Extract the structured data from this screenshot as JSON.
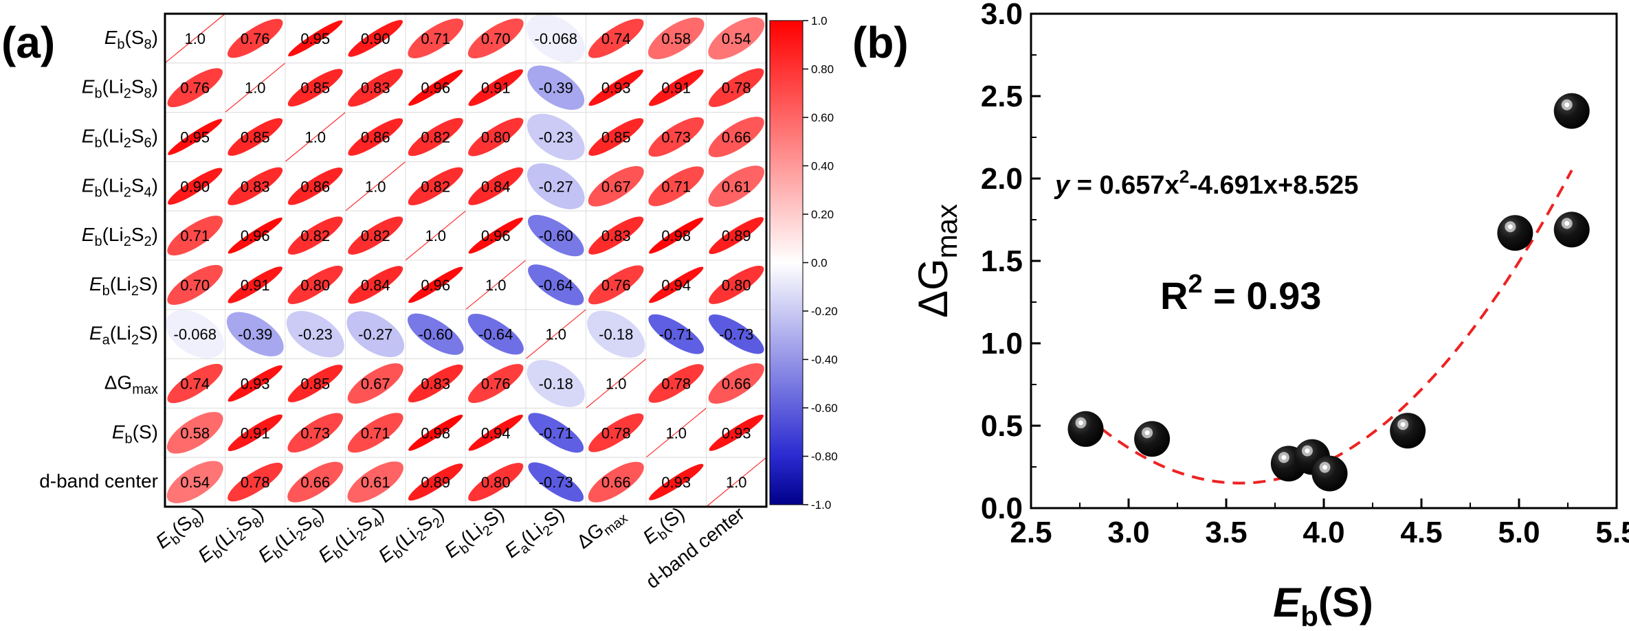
{
  "panel_a": {
    "letter": "(a)"
  },
  "panel_b": {
    "letter": "(b)"
  },
  "chart_data": [
    {
      "type": "heatmap",
      "variables": [
        {
          "main": "E",
          "sub": "b",
          "paren": "(S",
          "psub": "8",
          "tail": ")"
        },
        {
          "main": "E",
          "sub": "b",
          "paren": "(Li",
          "psub": "2",
          "mid": "S",
          "psub2": "8",
          "tail": ")"
        },
        {
          "main": "E",
          "sub": "b",
          "paren": "(Li",
          "psub": "2",
          "mid": "S",
          "psub2": "6",
          "tail": ")"
        },
        {
          "main": "E",
          "sub": "b",
          "paren": "(Li",
          "psub": "2",
          "mid": "S",
          "psub2": "4",
          "tail": ")"
        },
        {
          "main": "E",
          "sub": "b",
          "paren": "(Li",
          "psub": "2",
          "mid": "S",
          "psub2": "2",
          "tail": ")"
        },
        {
          "main": "E",
          "sub": "b",
          "paren": "(Li",
          "psub": "2",
          "mid": "S",
          "tail": ")"
        },
        {
          "main": "E",
          "sub": "a",
          "paren": "(Li",
          "psub": "2",
          "mid": "S",
          "tail": ")"
        },
        {
          "main": "ΔG",
          "sub": "max"
        },
        {
          "main": "E",
          "sub": "b",
          "paren": "(S)"
        },
        {
          "plain": "d-band center"
        }
      ],
      "values": [
        [
          1.0,
          0.76,
          0.95,
          0.9,
          0.71,
          0.7,
          -0.068,
          0.74,
          0.58,
          0.54
        ],
        [
          0.76,
          1.0,
          0.85,
          0.83,
          0.96,
          0.91,
          -0.39,
          0.93,
          0.91,
          0.78
        ],
        [
          0.95,
          0.85,
          1.0,
          0.86,
          0.82,
          0.8,
          -0.23,
          0.85,
          0.73,
          0.66
        ],
        [
          0.9,
          0.83,
          0.86,
          1.0,
          0.82,
          0.84,
          -0.27,
          0.67,
          0.71,
          0.61
        ],
        [
          0.71,
          0.96,
          0.82,
          0.82,
          1.0,
          0.96,
          -0.6,
          0.83,
          0.98,
          0.89
        ],
        [
          0.7,
          0.91,
          0.8,
          0.84,
          0.96,
          1.0,
          -0.64,
          0.76,
          0.94,
          0.8
        ],
        [
          -0.068,
          -0.39,
          -0.23,
          -0.27,
          -0.6,
          -0.64,
          1.0,
          -0.18,
          -0.71,
          -0.73
        ],
        [
          0.74,
          0.93,
          0.85,
          0.67,
          0.83,
          0.76,
          -0.18,
          1.0,
          0.78,
          0.66
        ],
        [
          0.58,
          0.91,
          0.73,
          0.71,
          0.98,
          0.94,
          -0.71,
          0.78,
          1.0,
          0.93
        ],
        [
          0.54,
          0.78,
          0.66,
          0.61,
          0.89,
          0.8,
          -0.73,
          0.66,
          0.93,
          1.0
        ]
      ],
      "labels": [
        [
          "1.0",
          "0.76",
          "0.95",
          "0.90",
          "0.71",
          "0.70",
          "-0.068",
          "0.74",
          "0.58",
          "0.54"
        ],
        [
          "0.76",
          "1.0",
          "0.85",
          "0.83",
          "0.96",
          "0.91",
          "-0.39",
          "0.93",
          "0.91",
          "0.78"
        ],
        [
          "0.95",
          "0.85",
          "1.0",
          "0.86",
          "0.82",
          "0.80",
          "-0.23",
          "0.85",
          "0.73",
          "0.66"
        ],
        [
          "0.90",
          "0.83",
          "0.86",
          "1.0",
          "0.82",
          "0.84",
          "-0.27",
          "0.67",
          "0.71",
          "0.61"
        ],
        [
          "0.71",
          "0.96",
          "0.82",
          "0.82",
          "1.0",
          "0.96",
          "-0.60",
          "0.83",
          "0.98",
          "0.89"
        ],
        [
          "0.70",
          "0.91",
          "0.80",
          "0.84",
          "0.96",
          "1.0",
          "-0.64",
          "0.76",
          "0.94",
          "0.80"
        ],
        [
          "-0.068",
          "-0.39",
          "-0.23",
          "-0.27",
          "-0.60",
          "-0.64",
          "1.0",
          "-0.18",
          "-0.71",
          "-0.73"
        ],
        [
          "0.74",
          "0.93",
          "0.85",
          "0.67",
          "0.83",
          "0.76",
          "-0.18",
          "1.0",
          "0.78",
          "0.66"
        ],
        [
          "0.58",
          "0.91",
          "0.73",
          "0.71",
          "0.98",
          "0.94",
          "-0.71",
          "0.78",
          "1.0",
          "0.93"
        ],
        [
          "0.54",
          "0.78",
          "0.66",
          "0.61",
          "0.89",
          "0.80",
          "-0.73",
          "0.66",
          "0.93",
          "1.0"
        ]
      ],
      "colorbar": {
        "range": [
          -1.0,
          1.0
        ],
        "ticks": [
          "1.0",
          "0.80",
          "0.60",
          "0.40",
          "0.20",
          "0.0",
          "-0.20",
          "-0.40",
          "-0.60",
          "-0.80",
          "-1.0"
        ],
        "colors": {
          "positive": "#ff0000",
          "zero": "#ffffff",
          "negative": "#1010b0",
          "negative_end": "#00008b"
        }
      }
    },
    {
      "type": "scatter",
      "x": [
        2.78,
        3.12,
        3.82,
        3.94,
        4.03,
        4.43,
        4.98,
        5.27,
        5.27
      ],
      "y": [
        0.48,
        0.42,
        0.27,
        0.31,
        0.21,
        0.47,
        1.67,
        2.41,
        1.69
      ],
      "fit": {
        "a": 0.657,
        "b": -4.691,
        "c": 8.525,
        "x_range": [
          2.78,
          5.27
        ],
        "color": "#ee2222",
        "style": "dashed"
      },
      "equation": {
        "y": "y",
        "eq": " = 0.657x",
        "sup": "2",
        "rest": "-4.691x+8.525"
      },
      "r2": {
        "r": "R",
        "sup": "2",
        "rest": " = 0.93"
      },
      "xlabel": {
        "main": "E",
        "sub": "b",
        "tail": "(S)"
      },
      "ylabel": {
        "main": "ΔG",
        "sub": "max"
      },
      "xlim": [
        2.5,
        5.5
      ],
      "ylim": [
        0.0,
        3.0
      ],
      "xticks": [
        "2.5",
        "3.0",
        "3.5",
        "4.0",
        "4.5",
        "5.0",
        "5.5"
      ],
      "yticks": [
        "0.0",
        "0.5",
        "1.0",
        "1.5",
        "2.0",
        "2.5",
        "3.0"
      ],
      "marker": "black sphere"
    }
  ]
}
